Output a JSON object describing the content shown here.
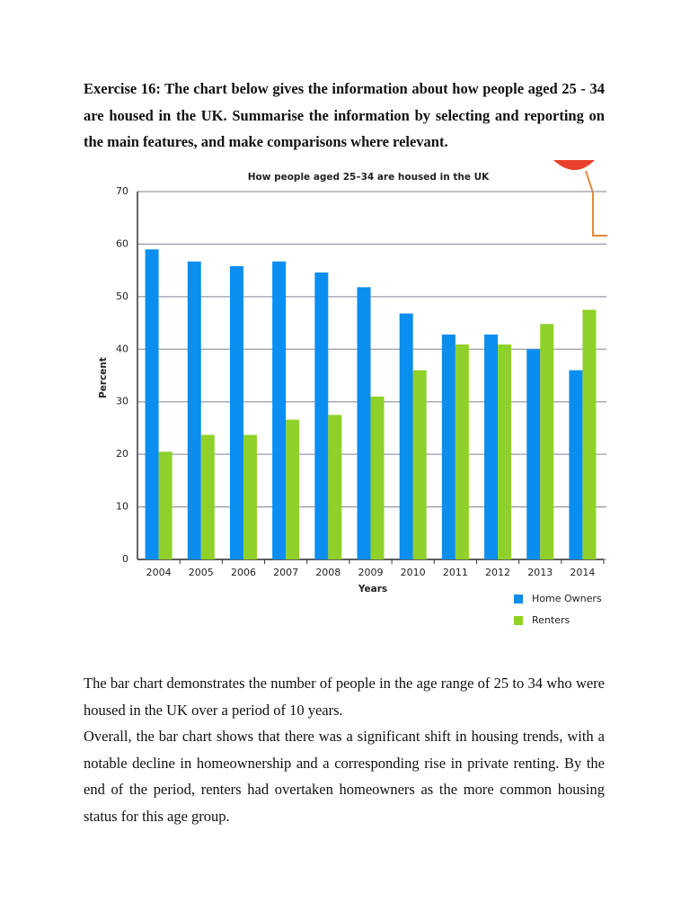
{
  "exercise": "Exercise 16: The chart below gives the information about how people aged 25 - 34 are housed in the UK. Summarise the information by selecting and reporting on the main features, and make comparisons where relevant.",
  "chart_data": {
    "type": "bar",
    "title": "How people aged 25–34 are housed in the UK",
    "x_label": "Years",
    "y_label": "Percent",
    "categories": [
      "2004",
      "2005",
      "2006",
      "2007",
      "2008",
      "2009",
      "2010",
      "2011",
      "2012",
      "2013",
      "2014"
    ],
    "series": [
      {
        "name": "Home Owners",
        "color": "#0a8ef0",
        "values": [
          59,
          56.7,
          55.8,
          56.7,
          54.6,
          51.8,
          46.8,
          42.8,
          42.8,
          40,
          36
        ]
      },
      {
        "name": "Renters",
        "color": "#8fd12a",
        "values": [
          20.5,
          23.7,
          23.7,
          26.6,
          27.5,
          31,
          36,
          40.9,
          40.9,
          44.8,
          47.5
        ]
      }
    ],
    "ylim": [
      0,
      70
    ],
    "yticks": [
      0,
      10,
      20,
      30,
      40,
      50,
      60,
      70
    ],
    "grid": true,
    "legend": "bottom-right"
  },
  "paragraphs": [
    "The bar chart demonstrates the number of people in the age range of 25 to 34 who were housed in the UK over a period of 10 years.",
    "Overall, the bar chart shows that there was a significant shift in housing trends, with a notable decline in homeownership and a corresponding rise in private renting. By the end of the period, renters had overtaken homeowners as the more common housing status for this age group."
  ]
}
